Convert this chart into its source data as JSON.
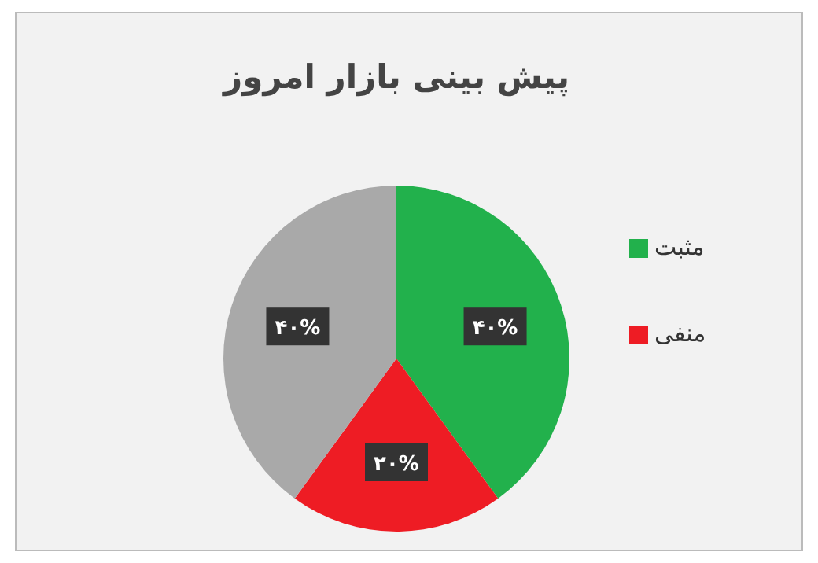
{
  "chart_data": {
    "type": "pie",
    "title": "پیش بینی بازار امروز",
    "categories": [
      "مثبت",
      "منفی",
      null
    ],
    "values": [
      40,
      20,
      40
    ],
    "colors": [
      "#22b14c",
      "#ee1c24",
      "#a9a9a9"
    ],
    "value_labels": [
      "۴۰%",
      "۲۰%",
      "۴۰%"
    ],
    "legend": "right"
  }
}
